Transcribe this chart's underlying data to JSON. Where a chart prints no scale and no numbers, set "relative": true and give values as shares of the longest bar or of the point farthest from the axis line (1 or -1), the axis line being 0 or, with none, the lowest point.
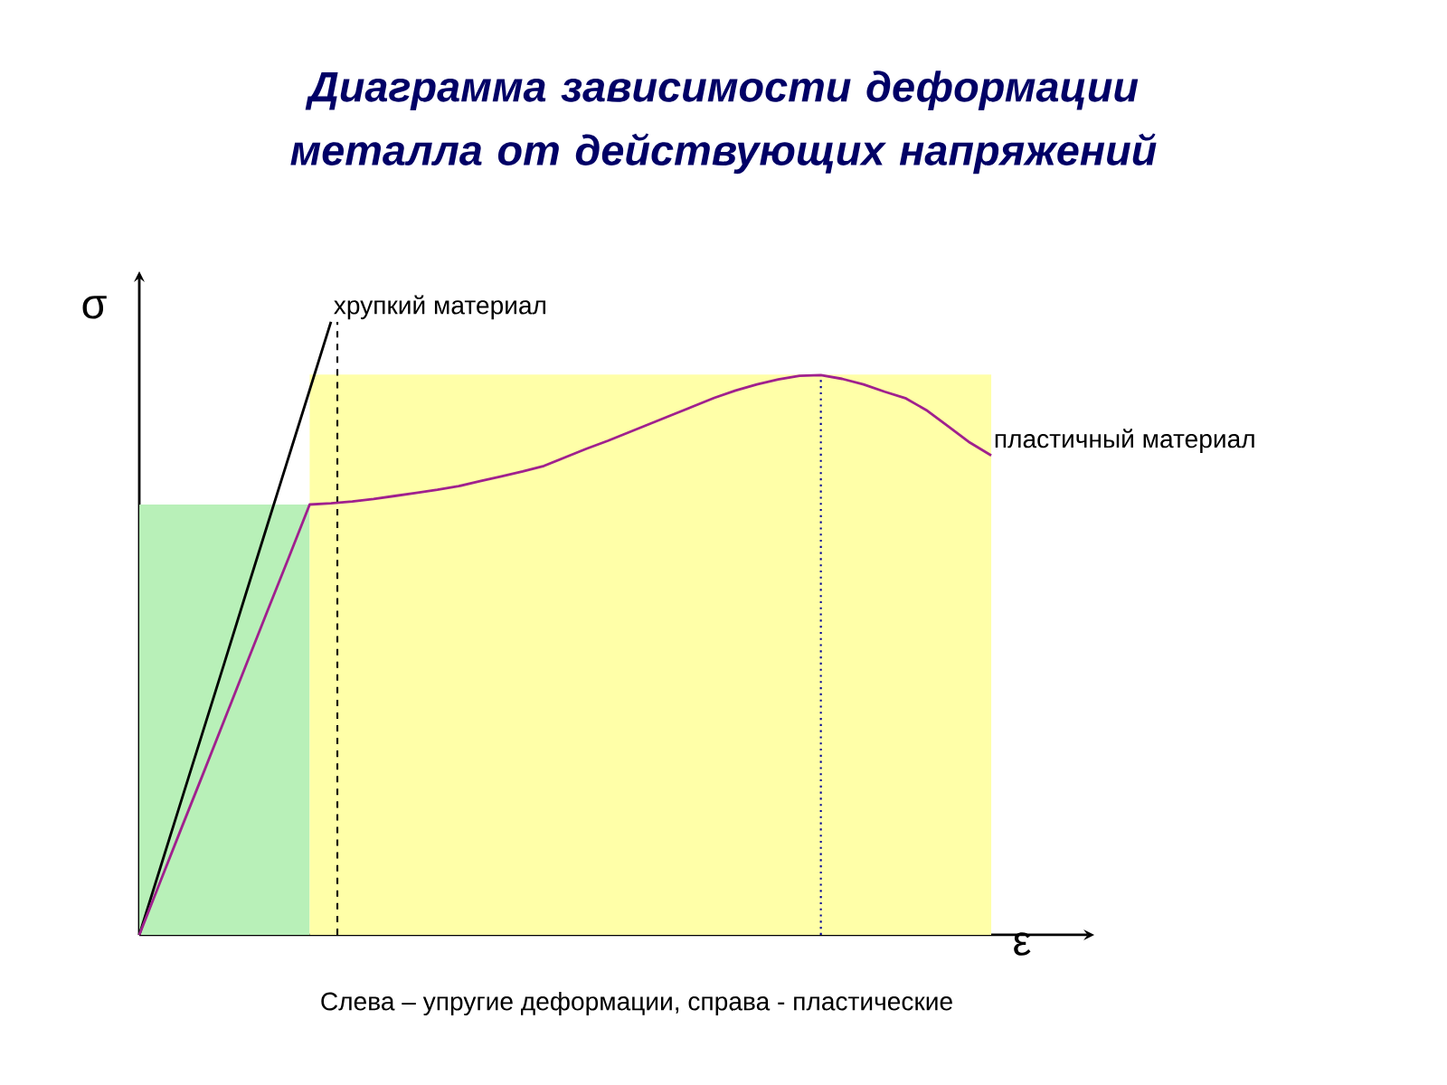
{
  "chart_data": {
    "type": "line",
    "relative": true,
    "title": "Диаграмма зависимости деформации металла от действующих напряжений",
    "xlabel": "ε",
    "ylabel": "σ",
    "annotations": [
      "Слева – упругие деформации, справа - пластические"
    ],
    "categories": [
      null,
      null,
      null,
      null,
      null,
      null,
      null,
      null,
      null,
      null,
      null,
      null,
      null,
      null,
      null,
      null,
      null,
      null,
      null,
      null,
      null,
      null,
      null,
      null,
      null,
      null,
      null,
      null,
      null,
      null,
      null,
      null,
      null,
      null,
      null,
      null,
      null,
      null,
      null,
      null,
      null
    ],
    "series": [
      {
        "type": "area",
        "color": "#b8f0b8",
        "values": [
          0.702,
          0.702,
          0.702,
          0.702,
          0.702,
          0.702,
          0.702,
          0.702,
          0.702,
          null,
          null,
          null,
          null,
          null,
          null,
          null,
          null,
          null,
          null,
          null,
          null,
          null,
          null,
          null,
          null,
          null,
          null,
          null,
          null,
          null,
          null,
          null,
          null,
          null,
          null,
          null,
          null,
          null,
          null,
          null,
          null
        ]
      },
      {
        "type": "area",
        "color": "#ffffa8",
        "values": [
          null,
          null,
          null,
          null,
          null,
          null,
          null,
          null,
          0.914,
          0.914,
          0.914,
          0.914,
          0.914,
          0.914,
          0.914,
          0.914,
          0.914,
          0.914,
          0.914,
          0.914,
          0.914,
          0.914,
          0.914,
          0.914,
          0.914,
          0.914,
          0.914,
          0.914,
          0.914,
          0.914,
          0.914,
          0.914,
          0.914,
          0.914,
          0.914,
          0.914,
          0.914,
          0.914,
          0.914,
          0.914,
          0.914
        ]
      },
      {
        "name": "хрупкий материал",
        "color": "#000000",
        "values": [
          0,
          0.111,
          0.222,
          0.333,
          0.444,
          0.556,
          0.667,
          0.778,
          0.889,
          1,
          null,
          null,
          null,
          null,
          null,
          null,
          null,
          null,
          null,
          null,
          null,
          null,
          null,
          null,
          null,
          null,
          null,
          null,
          null,
          null,
          null,
          null,
          null,
          null,
          null,
          null,
          null,
          null,
          null,
          null,
          null
        ]
      },
      {
        "name": "пластичный материал",
        "color": "#a0208e",
        "values": [
          0,
          0.088,
          0.176,
          0.263,
          0.351,
          0.439,
          0.527,
          0.614,
          0.702,
          0.704,
          0.707,
          0.711,
          0.716,
          0.721,
          0.726,
          0.732,
          0.74,
          0.748,
          0.756,
          0.765,
          0.779,
          0.793,
          0.806,
          0.82,
          0.834,
          0.848,
          0.862,
          0.876,
          0.888,
          0.898,
          0.906,
          0.912,
          0.913,
          0.907,
          0.898,
          0.886,
          0.875,
          0.855,
          0.829,
          0.803,
          0.782
        ]
      }
    ]
  }
}
